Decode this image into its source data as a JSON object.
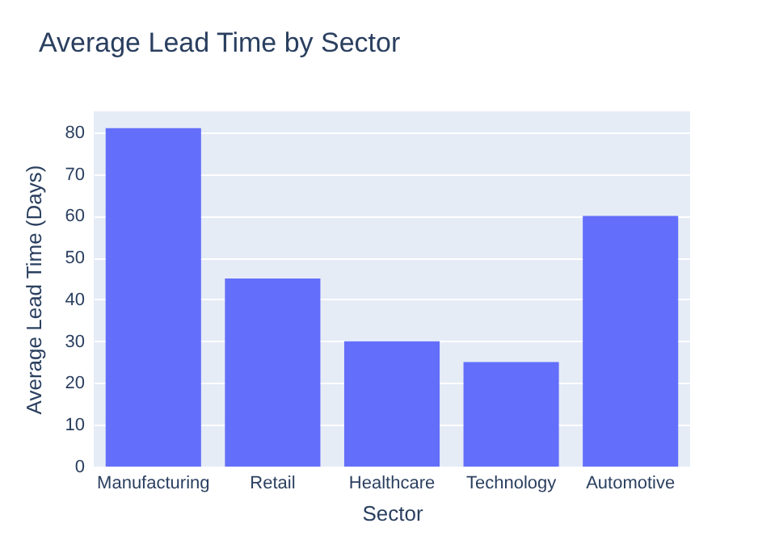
{
  "chart_data": {
    "type": "bar",
    "title": "Average Lead Time by Sector",
    "xlabel": "Sector",
    "ylabel": "Average Lead Time (Days)",
    "categories": [
      "Manufacturing",
      "Retail",
      "Healthcare",
      "Technology",
      "Automotive"
    ],
    "values": [
      81,
      45,
      30,
      25,
      60
    ],
    "color": "#636efa",
    "ylim": [
      0,
      85
    ],
    "yticks": [
      0,
      10,
      20,
      30,
      40,
      50,
      60,
      70,
      80
    ],
    "grid": "y"
  }
}
